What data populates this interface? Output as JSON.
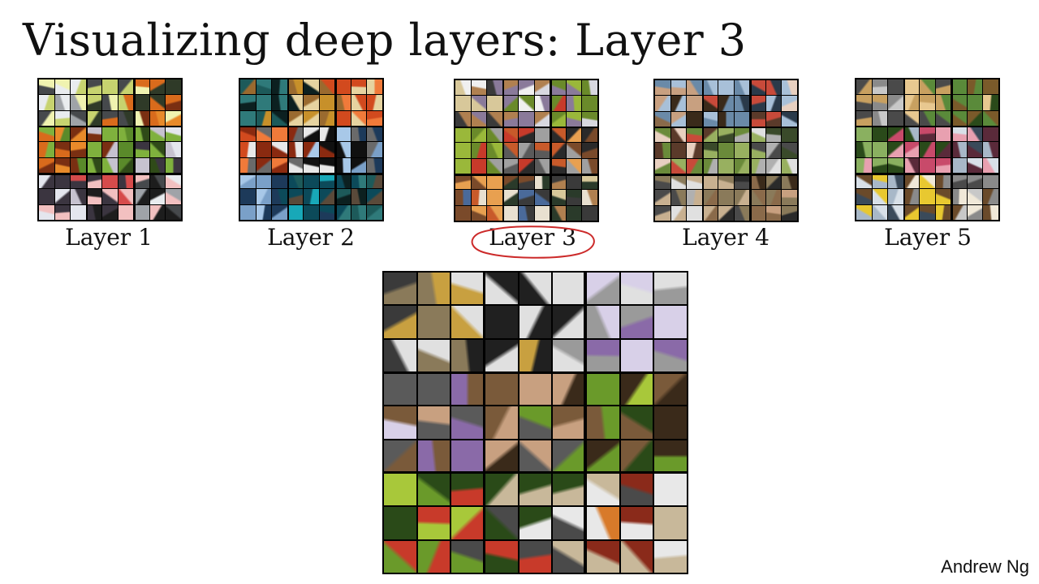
{
  "slide": {
    "title": "Visualizing deep layers: Layer 3",
    "author": "Andrew Ng",
    "highlighted_layer": "Layer 3"
  },
  "layers": [
    {
      "label": "Layer 1",
      "palette": [
        "#9fa3a8",
        "#e9ecef",
        "#46494c",
        "#c7d36f",
        "#f0f3b0",
        "#2f3a28",
        "#d96b1c",
        "#e88a2a",
        "#7a2f12",
        "#5a8a2a",
        "#7fb13d",
        "#2f4a18",
        "#c6c2cf",
        "#e4e6ee",
        "#3b3540",
        "#d64b4b",
        "#f2c0c0",
        "#1d1d1d"
      ]
    },
    {
      "label": "Layer 2",
      "palette": [
        "#1d5a5a",
        "#2f7a7a",
        "#0c2020",
        "#c7902a",
        "#9a6a2f",
        "#e6d3a0",
        "#d24a1e",
        "#f07a3a",
        "#8a2a10",
        "#e8e8e8",
        "#6a6a6a",
        "#101010",
        "#a8c8e8",
        "#7aa0c8",
        "#1d3a5a",
        "#18a8b8",
        "#0c4a5a",
        "#5a4a3a"
      ]
    },
    {
      "label": "Layer 3",
      "palette": [
        "#3a3a3a",
        "#d8c89a",
        "#b08050",
        "#f0f0f0",
        "#8a7a9a",
        "#d8d8e0",
        "#6a8a2a",
        "#9ab83a",
        "#c83a2a",
        "#5a5a5a",
        "#a0a0a0",
        "#2a2a2a",
        "#c85a2a",
        "#e8a050",
        "#7a4a2a",
        "#4a6a9a",
        "#e8e0d0",
        "#2a3a2a"
      ]
    },
    {
      "label": "Layer 4",
      "palette": [
        "#8a6a4a",
        "#c8a080",
        "#3a2a1a",
        "#6a8aa8",
        "#a8c0d8",
        "#2a3a4a",
        "#c84a3a",
        "#e8d0c0",
        "#5a3a2a",
        "#6a8a3a",
        "#98b060",
        "#3a4a2a",
        "#b0b0b0",
        "#e0e0e0",
        "#4a4a4a",
        "#c8b090",
        "#8a7a5a",
        "#2a2a2a"
      ]
    },
    {
      "label": "Layer 5",
      "palette": [
        "#8a8a8a",
        "#c8c8c8",
        "#4a4a4a",
        "#c8a060",
        "#e8c890",
        "#7a5a2a",
        "#5a8a3a",
        "#8ab060",
        "#2a4a1a",
        "#c84a6a",
        "#e8a0b0",
        "#5a2a3a",
        "#a8b8c8",
        "#d8e0e8",
        "#3a4a5a",
        "#e8c830",
        "#6a4a2a",
        "#f0e8d8"
      ]
    }
  ],
  "enlarged": {
    "layer": "Layer 3",
    "palette": [
      "#3a3a3a",
      "#8a7a5a",
      "#c8a040",
      "#202020",
      "#e0e0e0",
      "#9a9a9a",
      "#d8d0e8",
      "#8a6aa8",
      "#5a5a5a",
      "#c8a080",
      "#7a5a3a",
      "#3a2a1a",
      "#6a9a2a",
      "#a8c83a",
      "#2a4a18",
      "#c83a2a",
      "#4a4a4a",
      "#e8e8e8",
      "#c8b89a",
      "#8a2a1a",
      "#d87a2a",
      "#f0f0f0",
      "#a8a8a8",
      "#1d2a3a",
      "#3a6a9a",
      "#c8c8c8",
      "#7a7a7a"
    ]
  }
}
